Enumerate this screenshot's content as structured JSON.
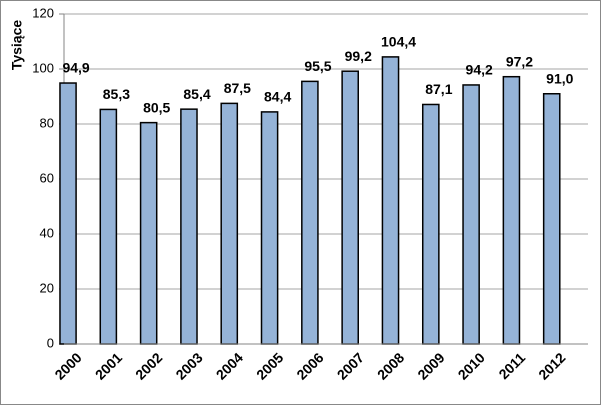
{
  "chart_data": {
    "type": "bar",
    "y_label": "Tysiące",
    "categories": [
      "2000",
      "2001",
      "2002",
      "2003",
      "2004",
      "2005",
      "2006",
      "2007",
      "2008",
      "2009",
      "2010",
      "2011",
      "2012"
    ],
    "values": [
      94.9,
      85.3,
      80.5,
      85.4,
      87.5,
      84.4,
      95.5,
      99.2,
      104.4,
      87.1,
      94.2,
      97.2,
      91.0
    ],
    "value_labels": [
      "94,9",
      "85,3",
      "80,5",
      "85,4",
      "87,5",
      "84,4",
      "95,5",
      "99,2",
      "104,4",
      "87,1",
      "94,2",
      "97,2",
      "91,0"
    ],
    "color": "#95b3d7",
    "ylim": [
      0,
      120
    ],
    "yticks": [
      0,
      20,
      40,
      60,
      80,
      100,
      120
    ],
    "grid": true
  }
}
